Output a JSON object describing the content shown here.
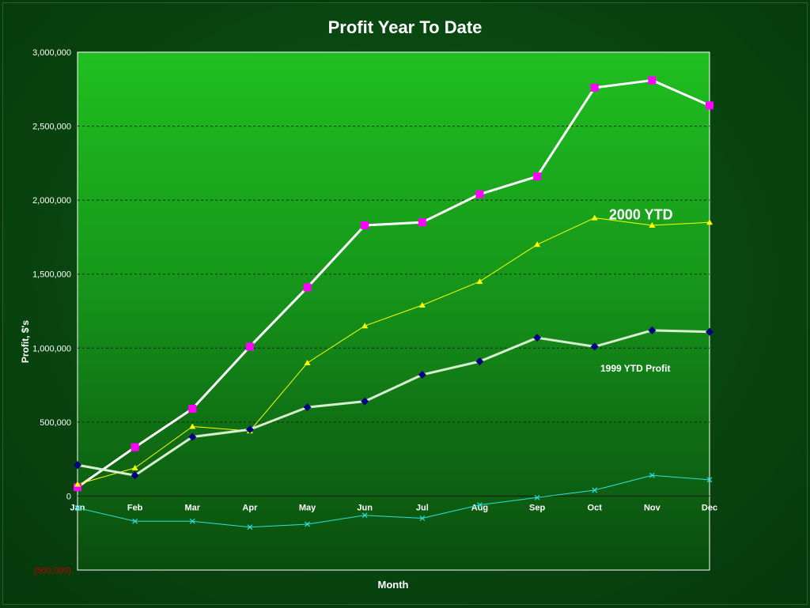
{
  "chart_data": {
    "type": "line",
    "title": "Profit Year To Date",
    "xlabel": "Month",
    "ylabel": "Profit, $'s",
    "categories": [
      "Jan",
      "Feb",
      "Mar",
      "Apr",
      "May",
      "Jun",
      "Jul",
      "Aug",
      "Sep",
      "Oct",
      "Nov",
      "Dec"
    ],
    "ylim": [
      -500000,
      3000000
    ],
    "yticks": [
      {
        "value": 3000000,
        "label": "3,000,000"
      },
      {
        "value": 2500000,
        "label": "2,500,000"
      },
      {
        "value": 2000000,
        "label": "2,000,000"
      },
      {
        "value": 1500000,
        "label": "1,500,000"
      },
      {
        "value": 1000000,
        "label": "1,000,000"
      },
      {
        "value": 500000,
        "label": "500,000"
      },
      {
        "value": 0,
        "label": "0"
      },
      {
        "value": -500000,
        "label": "(500,000)"
      }
    ],
    "grid": true,
    "series": [
      {
        "values": [
          60000,
          330000,
          590000,
          1010000,
          1410000,
          1830000,
          1850000,
          2040000,
          2160000,
          2760000,
          2810000,
          2640000
        ],
        "color": "#ffffff",
        "marker_color": "#ff00ff",
        "marker": "square",
        "width": 3
      },
      {
        "values": [
          80000,
          190000,
          470000,
          440000,
          900000,
          1150000,
          1290000,
          1450000,
          1700000,
          1880000,
          1830000,
          1850000
        ],
        "color": "#ffff00",
        "marker_color": "#ffff00",
        "marker": "triangle",
        "width": 1
      },
      {
        "values": [
          210000,
          140000,
          400000,
          450000,
          600000,
          640000,
          820000,
          910000,
          1070000,
          1010000,
          1120000,
          1110000
        ],
        "color": "#d8f0d0",
        "marker_color": "#000080",
        "marker": "diamond",
        "width": 3
      },
      {
        "values": [
          -80000,
          -170000,
          -170000,
          -210000,
          -190000,
          -130000,
          -150000,
          -60000,
          -10000,
          40000,
          140000,
          110000
        ],
        "color": "#30e0e0",
        "marker_color": "#30e0e0",
        "marker": "x",
        "width": 1
      }
    ],
    "annotations": [
      {
        "text": "2000  YTD",
        "month": 9.25,
        "value": 1870000,
        "size": 18
      },
      {
        "text": "1999 YTD Profit",
        "month": 9.1,
        "value": 840000,
        "size": 12
      }
    ],
    "colors": {
      "axis_text": "#ffffff",
      "negative_tick": "#c00000",
      "grid": "#0a2a0a"
    }
  }
}
